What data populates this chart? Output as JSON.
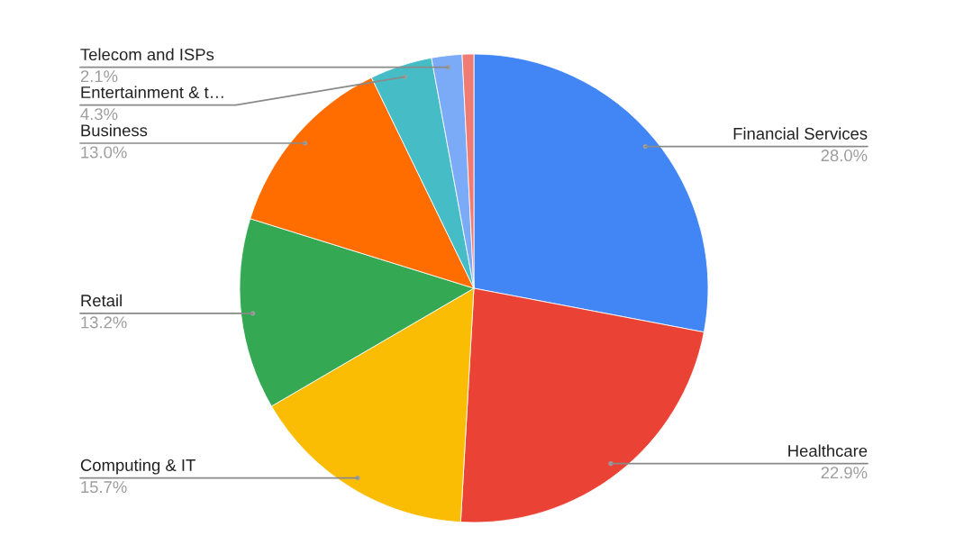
{
  "chart_data": {
    "type": "pie",
    "categories": [
      "Financial Services",
      "Healthcare",
      "Computing & IT",
      "Retail",
      "Business",
      "Entertainment & t…",
      "Telecom and ISPs",
      null
    ],
    "values": [
      28.0,
      22.9,
      15.7,
      13.2,
      13.0,
      4.3,
      2.1,
      0.8
    ],
    "colors": [
      "#4285f4",
      "#ea4335",
      "#fbbc04",
      "#34a853",
      "#ff6d01",
      "#46bdc6",
      "#7baaf7",
      "#f07b72"
    ],
    "value_labels": [
      "28.0%",
      "22.9%",
      "15.7%",
      "13.2%",
      "13.0%",
      "4.3%",
      "2.1%",
      null
    ]
  }
}
